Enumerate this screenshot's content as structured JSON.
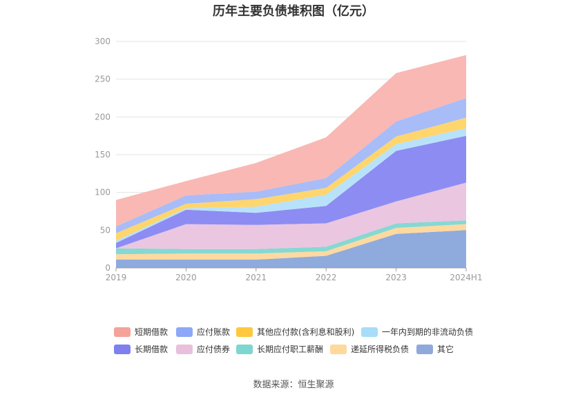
{
  "chart_data": {
    "type": "area",
    "stacked": true,
    "title": "历年主要负债堆积图（亿元）",
    "x": [
      "2019",
      "2020",
      "2021",
      "2022",
      "2023",
      "2024H1"
    ],
    "ylim": [
      0,
      300
    ],
    "yticks": [
      0,
      50,
      100,
      150,
      200,
      250,
      300
    ],
    "grid": true,
    "legend_position": "bottom",
    "series": [
      {
        "name": "其它",
        "color": "#8FAADC",
        "values": [
          11,
          11,
          11,
          16,
          45,
          50
        ]
      },
      {
        "name": "递延所得税负债",
        "color": "#FFD9A0",
        "values": [
          7,
          8,
          8,
          6,
          8,
          8
        ]
      },
      {
        "name": "长期应付职工薪酬",
        "color": "#86D9D3",
        "values": [
          8,
          6,
          6,
          6,
          6,
          5
        ]
      },
      {
        "name": "应付债券",
        "color": "#EBC6E0",
        "values": [
          0,
          33,
          32,
          31,
          29,
          50
        ]
      },
      {
        "name": "长期借款",
        "color": "#8C8CF2",
        "values": [
          7,
          19,
          16,
          23,
          67,
          62
        ]
      },
      {
        "name": "一年内到期的非流动负债",
        "color": "#B8E2FA",
        "values": [
          3,
          2,
          8,
          15,
          9,
          10
        ]
      },
      {
        "name": "其他应付款(含利息和股利)",
        "color": "#FFD66E",
        "values": [
          10,
          6,
          10,
          9,
          10,
          14
        ]
      },
      {
        "name": "应付账款",
        "color": "#A8BDF8",
        "values": [
          9,
          11,
          10,
          13,
          20,
          26
        ]
      },
      {
        "name": "短期借款",
        "color": "#F9B8B3",
        "values": [
          35,
          19,
          38,
          54,
          64,
          57
        ]
      }
    ]
  },
  "legend": [
    {
      "label": "短期借款",
      "color": "#F4A29A"
    },
    {
      "label": "应付账款",
      "color": "#8CA8F6"
    },
    {
      "label": "其他应付款(含利息和股利)",
      "color": "#FFC83D"
    },
    {
      "label": "一年内到期的非流动负债",
      "color": "#A7DDF8"
    },
    {
      "label": "长期借款",
      "color": "#7F7FF0"
    },
    {
      "label": "应付债券",
      "color": "#E8BFDC"
    },
    {
      "label": "长期应付职工薪酬",
      "color": "#7DD6CF"
    },
    {
      "label": "递延所得税负债",
      "color": "#FFD89B"
    },
    {
      "label": "其它",
      "color": "#8FA9DA"
    }
  ],
  "source": "数据来源：恒生聚源"
}
